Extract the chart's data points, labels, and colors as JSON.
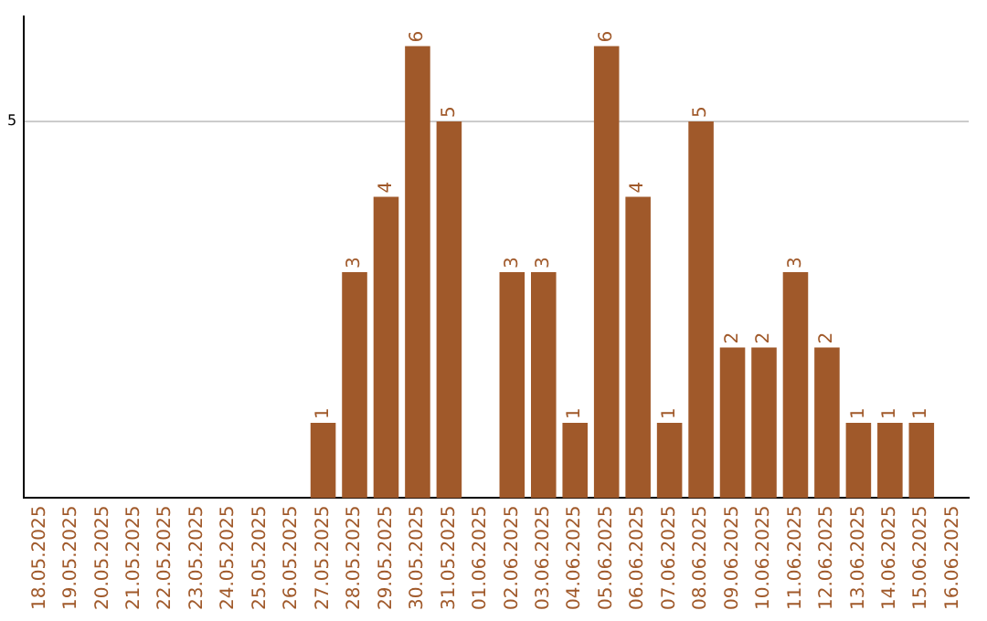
{
  "chart_data": {
    "type": "bar",
    "categories": [
      "18.05.2025",
      "19.05.2025",
      "20.05.2025",
      "21.05.2025",
      "22.05.2025",
      "23.05.2025",
      "24.05.2025",
      "25.05.2025",
      "26.05.2025",
      "27.05.2025",
      "28.05.2025",
      "29.05.2025",
      "30.05.2025",
      "31.05.2025",
      "01.06.2025",
      "02.06.2025",
      "03.06.2025",
      "04.06.2025",
      "05.06.2025",
      "06.06.2025",
      "07.06.2025",
      "08.06.2025",
      "09.06.2025",
      "10.06.2025",
      "11.06.2025",
      "12.06.2025",
      "13.06.2025",
      "14.06.2025",
      "15.06.2025",
      "16.06.2025"
    ],
    "values": [
      0,
      0,
      0,
      0,
      0,
      0,
      0,
      0,
      0,
      1,
      3,
      4,
      6,
      5,
      0,
      3,
      3,
      1,
      6,
      4,
      1,
      5,
      2,
      2,
      3,
      2,
      1,
      1,
      1,
      0
    ],
    "value_labels": [
      null,
      null,
      null,
      null,
      null,
      null,
      null,
      null,
      null,
      "1",
      "3",
      "4",
      "6",
      "5",
      null,
      "3",
      "3",
      "1",
      "6",
      "4",
      "1",
      "5",
      "2",
      "2",
      "3",
      "2",
      "1",
      "1",
      "1",
      null
    ],
    "color": "#a0592a",
    "ylim": [
      0,
      6.4
    ],
    "yticks": [
      5
    ],
    "grid": "y",
    "legend": false
  }
}
